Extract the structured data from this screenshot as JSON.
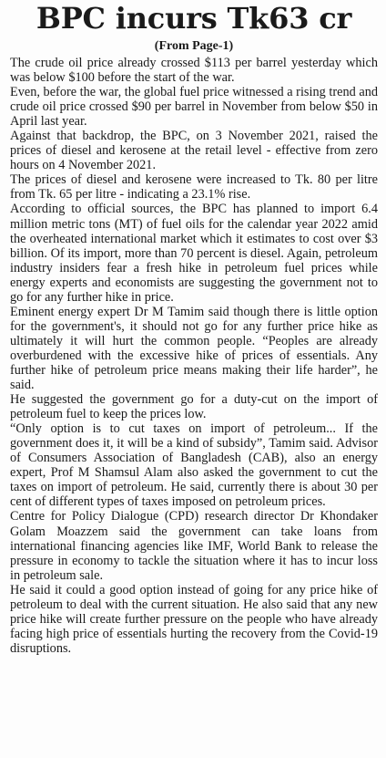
{
  "article": {
    "headline": "BPC incurs Tk63 cr",
    "continuation": "(From Page-1)",
    "paragraphs": [
      "The crude oil price already crossed $113 per barrel yester­day which was below $100 before the start of the war.",
      "Even, before the war, the global fuel price witnessed a ris­ing trend and crude oil price crossed $90 per barrel in November from below $50 in April last year.",
      "Against that backdrop, the BPC, on 3 November 2021, raised the prices of diesel and kerosene at the retail level - effective from zero hours on 4 November 2021.",
      "The prices of diesel and kerosene were increased to Tk. 80 per litre from Tk. 65 per litre - indicating a 23.1% rise.",
      "According to official sources, the BPC has planned to import 6.4 million metric tons (MT) of fuel oils for the cal­endar year 2022 amid the overheated international market which it estimates to cost over $3 billion. Of its import, more than 70 percent is diesel. Again, petroleum industry insiders fear a fresh hike in petroleum fuel prices while energy experts and economists are suggesting the govern­ment not to go for any further hike in price.",
      "Eminent energy expert Dr M Tamim said though there is little option for the government's, it should not go for any further price hike as ultimately it will hurt the common people. “Peoples are already overburdened with the exces­sive hike of prices of essentials. Any further hike of petro­leum price means making their life harder”, he said.",
      "He suggested the government go for a duty-cut on the import of petroleum fuel to keep the prices low.",
      "“Only option is to cut taxes on import of petroleum... If the government does it, it will be a kind of subsidy”, Tamim said. Advisor of Consumers Association of Bangladesh (CAB), also an energy expert, Prof M Shamsul Alam also asked the government to cut the taxes on import of petro­leum. He said, currently there is about 30 per cent of dif­ferent types of taxes imposed on petroleum prices.",
      "Centre for Policy Dialogue (CPD) research director Dr Khondaker Golam Moazzem said the government can take loans from international financing agencies like IMF, World Bank to release the pressure in economy to tackle the situ­ation where it has to incur loss in petroleum sale.",
      "He said it could a good option instead of going for any price hike of petroleum to deal with the current situation. He also said that any new price hike will create further pressure on the people who have already facing high price of essentials hurting the recovery from the Covid-19 disruptions."
    ]
  }
}
